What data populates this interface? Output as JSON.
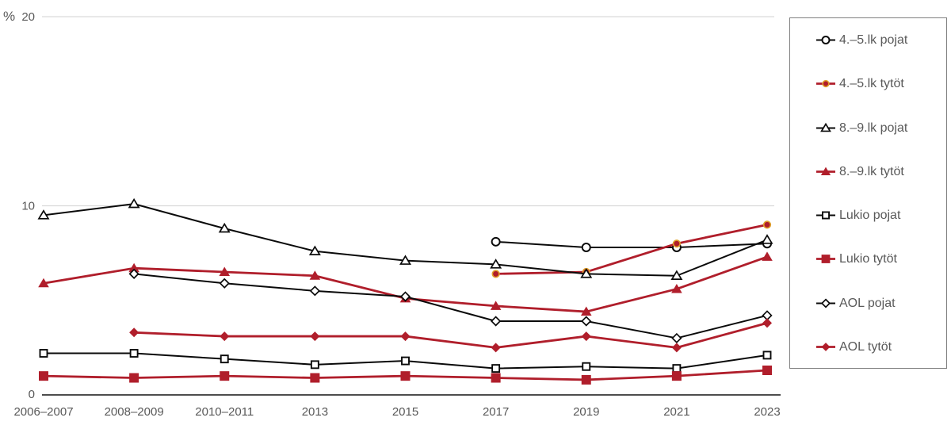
{
  "chart_data": {
    "type": "line",
    "unit_label": "%",
    "categories": [
      "2006–2007",
      "2008–2009",
      "2010–2011",
      "2013",
      "2015",
      "2017",
      "2019",
      "2021",
      "2023"
    ],
    "yticks": [
      "0",
      "10",
      "20"
    ],
    "ylim": [
      0,
      20
    ],
    "grid": true,
    "legend_position": "right",
    "colors": {
      "black_series": "#0a0a0a",
      "red_series": "#b01e2b",
      "dot_ring": "#e0a12b",
      "gridline": "#d9d9d9",
      "axis": "#4d4d4d",
      "text": "#595959"
    },
    "series": [
      {
        "name": "4.–5.lk pojat",
        "color": "#0a0a0a",
        "marker": "circle-open",
        "values": [
          null,
          null,
          null,
          null,
          null,
          8.1,
          7.8,
          7.8,
          8.0
        ]
      },
      {
        "name": "4.–5.lk tytöt",
        "color": "#b01e2b",
        "marker": "circle-filled",
        "values": [
          null,
          null,
          null,
          null,
          null,
          6.4,
          6.5,
          8.0,
          9.0
        ]
      },
      {
        "name": "8.–9.lk pojat",
        "color": "#0a0a0a",
        "marker": "triangle-open",
        "values": [
          9.5,
          10.1,
          8.8,
          7.6,
          7.1,
          6.9,
          6.4,
          6.3,
          8.2
        ]
      },
      {
        "name": "8.–9.lk tytöt",
        "color": "#b01e2b",
        "marker": "triangle-filled",
        "values": [
          5.9,
          6.7,
          6.5,
          6.3,
          5.1,
          4.7,
          4.4,
          5.6,
          7.3
        ]
      },
      {
        "name": "Lukio pojat",
        "color": "#0a0a0a",
        "marker": "square-open",
        "values": [
          2.2,
          2.2,
          1.9,
          1.6,
          1.8,
          1.4,
          1.5,
          1.4,
          2.1
        ]
      },
      {
        "name": "Lukio tytöt",
        "color": "#b01e2b",
        "marker": "square-filled",
        "values": [
          1.0,
          0.9,
          1.0,
          0.9,
          1.0,
          0.9,
          0.8,
          1.0,
          1.3
        ]
      },
      {
        "name": "AOL pojat",
        "color": "#0a0a0a",
        "marker": "diamond-open",
        "values": [
          null,
          6.4,
          5.9,
          5.5,
          5.2,
          3.9,
          3.9,
          3.0,
          4.2
        ]
      },
      {
        "name": "AOL tytöt",
        "color": "#b01e2b",
        "marker": "diamond-filled",
        "values": [
          null,
          3.3,
          3.1,
          3.1,
          3.1,
          2.5,
          3.1,
          2.5,
          3.8
        ]
      }
    ]
  }
}
